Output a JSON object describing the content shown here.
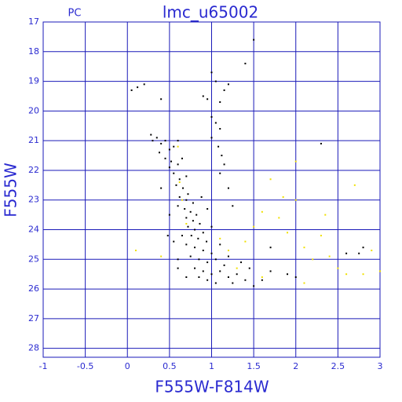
{
  "chart_data": {
    "type": "scatter",
    "title": "lmc_u65002",
    "subtitle": "PC",
    "x_label": "F555W-F814W",
    "y_label": "F555W",
    "xlim": [
      -1,
      3
    ],
    "xticks": [
      -1,
      -0.5,
      0,
      0.5,
      1,
      1.5,
      2,
      2.5,
      3
    ],
    "ylim": [
      28.3,
      17
    ],
    "yticks": [
      17,
      18,
      19,
      20,
      21,
      22,
      23,
      24,
      25,
      26,
      27,
      28
    ],
    "grid": true,
    "grid_color": "#1a1ab8",
    "series": [
      {
        "color": "#000000",
        "x": [
          0.05,
          0.12,
          0.2,
          0.4,
          1.5,
          1.4,
          1.0,
          1.05,
          1.15,
          1.2,
          0.9,
          0.95,
          1.1,
          2.3,
          1.0,
          1.05,
          1.1,
          1.0,
          1.08,
          1.12,
          1.15,
          1.1,
          1.2,
          1.25,
          0.28,
          0.3,
          0.35,
          0.4,
          0.45,
          0.5,
          0.38,
          0.55,
          0.6,
          0.45,
          0.52,
          0.6,
          0.5,
          0.65,
          0.55,
          0.62,
          0.7,
          0.58,
          0.66,
          0.72,
          0.62,
          0.7,
          0.78,
          0.68,
          0.75,
          0.82,
          0.7,
          0.78,
          0.86,
          0.72,
          0.8,
          0.9,
          0.76,
          0.84,
          0.94,
          0.7,
          0.8,
          0.9,
          1.0,
          0.75,
          0.85,
          0.95,
          1.05,
          1.15,
          0.8,
          0.9,
          1.0,
          1.1,
          1.2,
          1.3,
          0.85,
          0.95,
          1.05,
          1.25,
          1.4,
          1.5,
          1.6,
          1.7,
          0.6,
          0.55,
          0.4,
          0.5,
          0.65,
          0.88,
          0.95,
          1.0,
          1.1,
          1.2,
          1.35,
          1.45,
          0.7,
          0.6,
          1.9,
          2.0,
          2.75,
          2.6,
          2.8,
          1.7,
          0.48,
          0.6
        ],
        "values": [
          19.3,
          19.2,
          19.1,
          19.6,
          17.6,
          18.4,
          18.7,
          19.0,
          19.3,
          19.1,
          19.5,
          19.6,
          19.7,
          21.1,
          20.2,
          20.4,
          20.6,
          20.9,
          21.2,
          21.5,
          21.8,
          22.1,
          22.6,
          23.2,
          20.8,
          21.0,
          20.9,
          21.1,
          21.0,
          21.3,
          21.4,
          21.2,
          21.0,
          21.6,
          21.7,
          21.8,
          21.9,
          21.6,
          22.1,
          22.3,
          22.2,
          22.5,
          22.6,
          22.8,
          22.9,
          23.0,
          23.1,
          23.3,
          23.4,
          23.5,
          23.6,
          23.7,
          23.8,
          23.9,
          24.0,
          24.1,
          24.2,
          24.3,
          24.4,
          24.5,
          24.6,
          24.7,
          24.8,
          24.9,
          25.0,
          25.1,
          25.0,
          25.2,
          25.3,
          25.4,
          25.5,
          25.4,
          25.6,
          25.5,
          25.6,
          25.7,
          25.8,
          25.8,
          25.7,
          25.9,
          25.7,
          25.4,
          25.0,
          24.4,
          22.6,
          23.5,
          24.2,
          22.9,
          23.3,
          23.9,
          24.5,
          24.9,
          25.1,
          25.3,
          25.6,
          25.3,
          25.5,
          25.6,
          24.8,
          24.8,
          24.6,
          24.6,
          24.2,
          23.2
        ]
      },
      {
        "color": "#f0e000",
        "x": [
          0.6,
          0.62,
          0.65,
          0.7,
          1.1,
          1.2,
          1.3,
          1.4,
          1.5,
          1.6,
          1.8,
          1.9,
          2.0,
          2.1,
          2.2,
          2.3,
          2.4,
          2.5,
          2.6,
          2.7,
          2.9,
          3.0,
          1.7,
          2.0,
          0.1,
          0.4,
          2.1,
          1.6,
          2.8,
          1.85,
          2.35
        ],
        "values": [
          21.2,
          22.4,
          23.0,
          23.8,
          24.3,
          24.7,
          25.3,
          24.4,
          23.9,
          23.4,
          23.6,
          24.1,
          23.0,
          24.6,
          25.0,
          24.2,
          24.9,
          25.3,
          25.5,
          22.5,
          24.7,
          25.4,
          22.3,
          21.7,
          24.7,
          24.9,
          25.8,
          25.6,
          25.5,
          22.9,
          23.5
        ]
      }
    ]
  }
}
